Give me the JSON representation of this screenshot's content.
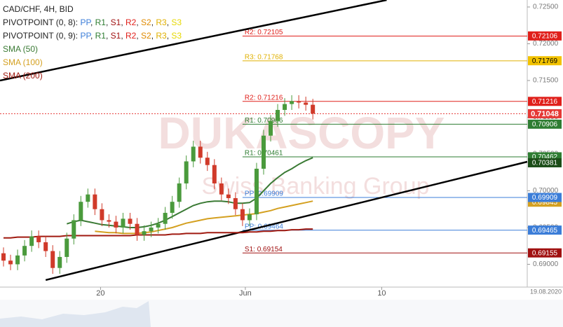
{
  "chart_data": {
    "type": "candlestick",
    "title": "CAD/CHF, 4H, BID",
    "pivot_legends": [
      {
        "prefix": "PIVOTPOINT (0, 8):",
        "items": [
          {
            "text": "PP",
            "color": "#3b7dd8"
          },
          {
            "text": "R1",
            "color": "#2e7d32"
          },
          {
            "text": "S1",
            "color": "#a01010"
          },
          {
            "text": "R2",
            "color": "#e0201b"
          },
          {
            "text": "S2",
            "color": "#e08a00"
          },
          {
            "text": "R3",
            "color": "#e0b000"
          },
          {
            "text": "S3",
            "color": "#e6d800"
          }
        ]
      },
      {
        "prefix": "PIVOTPOINT (0, 9):",
        "items": [
          {
            "text": "PP",
            "color": "#3b7dd8"
          },
          {
            "text": "R1",
            "color": "#2e7d32"
          },
          {
            "text": "S1",
            "color": "#a01010"
          },
          {
            "text": "R2",
            "color": "#e0201b"
          },
          {
            "text": "S2",
            "color": "#e08a00"
          },
          {
            "text": "R3",
            "color": "#e0b000"
          },
          {
            "text": "S3",
            "color": "#e6d800"
          }
        ]
      }
    ],
    "watermark": [
      "DUKASCOPY",
      "Swiss Banking Group"
    ],
    "date_label": "19.08.2020",
    "up_color": "#4a9a3c",
    "down_color": "#d03a2a",
    "xlim": [
      -0.5,
      74.5
    ],
    "xticks": [
      {
        "value": 13.8,
        "label": "20"
      },
      {
        "value": 34.4,
        "label": "Jun"
      },
      {
        "value": 53.8,
        "label": "10"
      }
    ],
    "ylim": [
      0.6869,
      0.72595
    ],
    "yticks": [
      {
        "value": 0.725,
        "label": "0.72500"
      },
      {
        "value": 0.72,
        "label": "0.72000"
      },
      {
        "value": 0.715,
        "label": "0.71500"
      },
      {
        "value": 0.71,
        "label": "0.71000"
      },
      {
        "value": 0.705,
        "label": "0.70500"
      },
      {
        "value": 0.7,
        "label": "0.70000"
      },
      {
        "value": 0.695,
        "label": "0.69500"
      },
      {
        "value": 0.69,
        "label": "0.69000"
      }
    ],
    "open": [
      0.6915,
      0.6905,
      0.69,
      0.6912,
      0.6925,
      0.6938,
      0.693,
      0.6918,
      0.6895,
      0.691,
      0.6935,
      0.696,
      0.6985,
      0.6995,
      0.6975,
      0.696,
      0.6958,
      0.695,
      0.6962,
      0.6955,
      0.694,
      0.6945,
      0.695,
      0.6955,
      0.697,
      0.6985,
      0.701,
      0.704,
      0.706,
      0.7045,
      0.7035,
      0.701,
      0.6995,
      0.699,
      0.6975,
      0.696,
      0.6968,
      0.703,
      0.7075,
      0.7095,
      0.711,
      0.7118,
      0.7122,
      0.712,
      0.7117
    ],
    "high": [
      0.6923,
      0.6913,
      0.692,
      0.6933,
      0.6946,
      0.6946,
      0.6938,
      0.6926,
      0.6918,
      0.6943,
      0.6968,
      0.6993,
      0.7003,
      0.7003,
      0.6983,
      0.6968,
      0.6966,
      0.697,
      0.697,
      0.6963,
      0.6953,
      0.6958,
      0.6963,
      0.6978,
      0.6993,
      0.7018,
      0.7048,
      0.7068,
      0.7068,
      0.7053,
      0.7043,
      0.7018,
      0.7003,
      0.6998,
      0.6983,
      0.6976,
      0.7038,
      0.7083,
      0.7103,
      0.7118,
      0.7126,
      0.713,
      0.713,
      0.7128,
      0.7125
    ],
    "low": [
      0.6897,
      0.6892,
      0.6892,
      0.6904,
      0.6917,
      0.6922,
      0.691,
      0.6887,
      0.6887,
      0.6902,
      0.6927,
      0.6952,
      0.6977,
      0.6967,
      0.6952,
      0.695,
      0.6942,
      0.6942,
      0.6947,
      0.6932,
      0.6932,
      0.6937,
      0.6942,
      0.6947,
      0.6962,
      0.6977,
      0.7002,
      0.7032,
      0.7037,
      0.7027,
      0.7002,
      0.6987,
      0.6982,
      0.6967,
      0.6952,
      0.6952,
      0.696,
      0.7022,
      0.7067,
      0.7087,
      0.7102,
      0.711,
      0.7112,
      0.7109,
      0.7097
    ],
    "close": [
      0.6905,
      0.69,
      0.6912,
      0.6925,
      0.6938,
      0.693,
      0.6918,
      0.6895,
      0.691,
      0.6935,
      0.696,
      0.6985,
      0.6995,
      0.6975,
      0.696,
      0.6958,
      0.695,
      0.6962,
      0.6955,
      0.694,
      0.6945,
      0.695,
      0.6955,
      0.697,
      0.6985,
      0.701,
      0.704,
      0.706,
      0.7045,
      0.7035,
      0.701,
      0.6995,
      0.699,
      0.6975,
      0.696,
      0.6968,
      0.703,
      0.7075,
      0.7095,
      0.711,
      0.7118,
      0.7122,
      0.712,
      0.7117,
      0.7105
    ],
    "series": [
      {
        "name": "SMA (50)",
        "color": "#3a7a34",
        "values": [
          null,
          null,
          null,
          null,
          null,
          null,
          null,
          null,
          null,
          0.6955,
          0.6958,
          0.696,
          0.6958,
          0.6956,
          0.6954,
          0.6953,
          0.6952,
          0.6951,
          0.695,
          0.695,
          0.6951,
          0.6953,
          0.6956,
          0.696,
          0.6965,
          0.697,
          0.6975,
          0.698,
          0.6983,
          0.6985,
          0.6986,
          0.6986,
          0.6985,
          0.6983,
          0.6983,
          0.6984,
          0.699,
          0.7,
          0.701,
          0.7018,
          0.7025,
          0.703,
          0.7036,
          0.7041,
          0.7045
        ]
      },
      {
        "name": "SMA (100)",
        "color": "#d4a020",
        "values": [
          null,
          null,
          null,
          null,
          null,
          null,
          null,
          null,
          null,
          null,
          null,
          null,
          null,
          0.6945,
          0.6944,
          0.6943,
          0.6943,
          0.6942,
          0.6942,
          0.6942,
          0.6943,
          0.6944,
          0.6946,
          0.6948,
          0.695,
          0.6953,
          0.6956,
          0.6958,
          0.696,
          0.6962,
          0.6963,
          0.6964,
          0.6965,
          0.6966,
          0.6967,
          0.6968,
          0.6969,
          0.6971,
          0.6973,
          0.6976,
          0.6978,
          0.698,
          0.6982,
          0.6984,
          0.6986
        ]
      },
      {
        "name": "SMA (200)",
        "color": "#a01a10",
        "values": [
          0.6936,
          0.6936,
          0.6937,
          0.6937,
          0.6937,
          0.6938,
          0.6938,
          0.6938,
          0.6938,
          0.6939,
          0.6939,
          0.6939,
          0.6939,
          0.6939,
          0.6939,
          0.6939,
          0.6939,
          0.6939,
          0.6939,
          0.694,
          0.694,
          0.694,
          0.694,
          0.694,
          0.6941,
          0.6941,
          0.6942,
          0.6942,
          0.6942,
          0.6943,
          0.6943,
          0.6943,
          0.6943,
          0.6943,
          0.6943,
          0.6944,
          0.6944,
          0.6945,
          0.6945,
          0.6946,
          0.6946,
          0.6947,
          0.6947,
          0.6948,
          0.6948
        ]
      }
    ],
    "trendlines": [
      {
        "x": [
          -0.5,
          54.5
        ],
        "y": [
          0.715,
          0.72595
        ]
      },
      {
        "x": [
          6,
          74.5
        ],
        "y": [
          0.68786,
          0.70395
        ]
      }
    ],
    "pivot_start": 34,
    "pivot_lines": [
      {
        "label": "R2: 0.72105",
        "value": 0.72105,
        "color": "#e0201b"
      },
      {
        "label": "R3: 0.71768",
        "value": 0.71768,
        "color": "#e0b000"
      },
      {
        "label": "R2: 0.71216",
        "value": 0.71216,
        "color": "#e0201b"
      },
      {
        "label": "R1: 0.70906",
        "value": 0.70906,
        "color": "#2e7d32"
      },
      {
        "label": "R1: 0.70461",
        "value": 0.70461,
        "color": "#2e7d32"
      },
      {
        "label": "PP: 0.69909",
        "value": 0.69909,
        "color": "#3b7dd8"
      },
      {
        "label": "PP: 0.69464",
        "value": 0.69464,
        "color": "#3b7dd8"
      },
      {
        "label": "S1: 0.69154",
        "value": 0.69154,
        "color": "#a01010"
      }
    ],
    "current_price": 0.71048,
    "price_tags": [
      {
        "value": 0.72106,
        "color": "#e0201b"
      },
      {
        "value": 0.71769,
        "color": "#f2c200"
      },
      {
        "value": 0.71216,
        "color": "#e0201b"
      },
      {
        "value": 0.71048,
        "color": "#e53935"
      },
      {
        "value": 0.70906,
        "color": "#2e7d32"
      },
      {
        "value": 0.70462,
        "color": "#2e7d32"
      },
      {
        "value": 0.70381,
        "color": "#1b4d18"
      },
      {
        "value": 0.69845,
        "color": "#d4a020"
      },
      {
        "value": 0.69909,
        "color": "#3b7dd8"
      },
      {
        "value": 0.69465,
        "color": "#3b7dd8"
      },
      {
        "value": 0.69155,
        "color": "#a01010"
      }
    ]
  }
}
